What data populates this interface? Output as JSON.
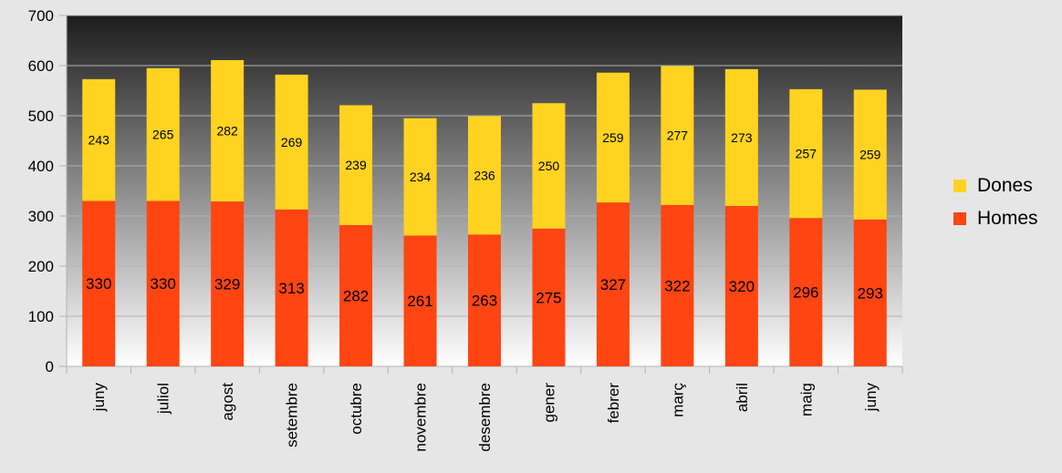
{
  "chart_data": {
    "type": "bar",
    "stacked": true,
    "categories": [
      "juny",
      "juliol",
      "agost",
      "setembre",
      "octubre",
      "novembre",
      "desembre",
      "gener",
      "febrer",
      "març",
      "abril",
      "maig",
      "juny"
    ],
    "series": [
      {
        "name": "Homes",
        "color": "#ff4512",
        "values": [
          330,
          330,
          329,
          313,
          282,
          261,
          263,
          275,
          327,
          322,
          320,
          296,
          293
        ]
      },
      {
        "name": "Dones",
        "color": "#ffd320",
        "values": [
          243,
          265,
          282,
          269,
          239,
          234,
          236,
          250,
          259,
          277,
          273,
          257,
          259
        ]
      }
    ],
    "ylim": [
      0,
      700
    ],
    "yticks": [
      0,
      100,
      200,
      300,
      400,
      500,
      600,
      700
    ],
    "grid": true,
    "legend_position": "right",
    "background_gradient": [
      "#1c1c1c",
      "#ffffff"
    ]
  }
}
